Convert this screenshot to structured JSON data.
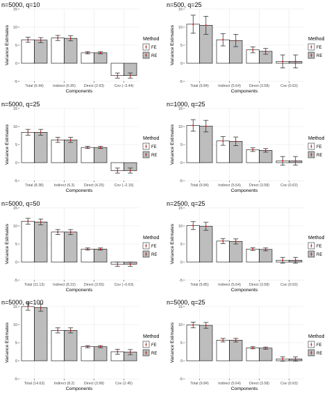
{
  "chart_data": [
    {
      "type": "bar",
      "title": "n=5000, q=10",
      "xlabel": "Components",
      "ylabel": "Variance Estimates",
      "ylim": [
        -5,
        15
      ],
      "yticks": [
        -5,
        0,
        5,
        10,
        15
      ],
      "grid": true,
      "legend_title": "Method",
      "legend_position": "right",
      "categories": [
        "Total (6.44)",
        "Indirect (6.95)",
        "Direct (2.93)",
        "Cov (−3.44)"
      ],
      "series": [
        {
          "name": "FE",
          "fill": "#ffffff",
          "values": [
            6.5,
            7.0,
            2.9,
            -3.4
          ],
          "err": [
            0.7,
            0.7,
            0.3,
            0.7
          ]
        },
        {
          "name": "RE",
          "fill": "#bdbdbd",
          "values": [
            6.4,
            6.9,
            2.9,
            -3.4
          ],
          "err": [
            0.7,
            0.7,
            0.3,
            0.7
          ]
        }
      ]
    },
    {
      "type": "bar",
      "title": "n=500, q=25",
      "xlabel": "Components",
      "ylabel": "Variance Estimates",
      "ylim": [
        -5,
        15
      ],
      "yticks": [
        -5,
        0,
        5,
        10,
        15
      ],
      "grid": true,
      "legend_title": "Method",
      "legend_position": "right",
      "categories": [
        "Total (9.84)",
        "Indirect (5.64)",
        "Direct (3.58)",
        "Cov (0.63)"
      ],
      "series": [
        {
          "name": "FE",
          "fill": "#ffffff",
          "values": [
            10.8,
            6.5,
            3.7,
            0.5
          ],
          "err": [
            2.5,
            1.7,
            0.8,
            1.8
          ]
        },
        {
          "name": "RE",
          "fill": "#bdbdbd",
          "values": [
            10.5,
            6.3,
            3.3,
            0.5
          ],
          "err": [
            2.5,
            1.7,
            0.8,
            1.8
          ]
        }
      ]
    },
    {
      "type": "bar",
      "title": "n=5000, q=25",
      "xlabel": "Components",
      "ylabel": "Variance Estimates",
      "ylim": [
        -5,
        15
      ],
      "yticks": [
        -5,
        0,
        5,
        10,
        15
      ],
      "grid": true,
      "legend_title": "Method",
      "legend_position": "right",
      "categories": [
        "Total (8.38)",
        "Indirect (6.3)",
        "Direct (4.25)",
        "Cov (−2.16)"
      ],
      "series": [
        {
          "name": "FE",
          "fill": "#ffffff",
          "values": [
            8.4,
            6.3,
            4.2,
            -2.2
          ],
          "err": [
            0.8,
            0.7,
            0.3,
            0.7
          ]
        },
        {
          "name": "RE",
          "fill": "#bdbdbd",
          "values": [
            8.4,
            6.3,
            4.2,
            -2.2
          ],
          "err": [
            0.8,
            0.7,
            0.3,
            0.7
          ]
        }
      ]
    },
    {
      "type": "bar",
      "title": "n=1000, q=25",
      "xlabel": "Components",
      "ylabel": "Variance Estimates",
      "ylim": [
        -5,
        15
      ],
      "yticks": [
        -5,
        0,
        5,
        10,
        15
      ],
      "grid": true,
      "legend_title": "Method",
      "legend_position": "right",
      "categories": [
        "Total (9.84)",
        "Indirect (5.64)",
        "Direct (3.58)",
        "Cov (0.63)"
      ],
      "series": [
        {
          "name": "FE",
          "fill": "#ffffff",
          "values": [
            10.3,
            6.0,
            3.6,
            0.5
          ],
          "err": [
            1.6,
            1.2,
            0.5,
            1.2
          ]
        },
        {
          "name": "RE",
          "fill": "#bdbdbd",
          "values": [
            10.1,
            5.9,
            3.4,
            0.5
          ],
          "err": [
            1.6,
            1.2,
            0.5,
            1.2
          ]
        }
      ]
    },
    {
      "type": "bar",
      "title": "n=5000, q=50",
      "xlabel": "Components",
      "ylabel": "Variance Estimates",
      "ylim": [
        -5,
        15
      ],
      "yticks": [
        -5,
        0,
        5,
        10,
        15
      ],
      "grid": true,
      "legend_title": "Method",
      "legend_position": "right",
      "categories": [
        "Total (11.13)",
        "Indirect (8.22)",
        "Direct (3.55)",
        "Cov (−0.63)"
      ],
      "series": [
        {
          "name": "FE",
          "fill": "#ffffff",
          "values": [
            11.3,
            8.3,
            3.6,
            -0.6
          ],
          "err": [
            0.8,
            0.7,
            0.3,
            0.6
          ]
        },
        {
          "name": "RE",
          "fill": "#bdbdbd",
          "values": [
            11.1,
            8.3,
            3.6,
            -0.6
          ],
          "err": [
            0.8,
            0.7,
            0.3,
            0.6
          ]
        }
      ]
    },
    {
      "type": "bar",
      "title": "n=2500, q=25",
      "xlabel": "Components",
      "ylabel": "Variance Estimates",
      "ylim": [
        -5,
        15
      ],
      "yticks": [
        -5,
        0,
        5,
        10,
        15
      ],
      "grid": true,
      "legend_title": "Method",
      "legend_position": "right",
      "categories": [
        "Total (9.85)",
        "Indirect (5.64)",
        "Direct (3.58)",
        "Cov (0.63)"
      ],
      "series": [
        {
          "name": "FE",
          "fill": "#ffffff",
          "values": [
            10.1,
            5.8,
            3.6,
            0.5
          ],
          "err": [
            1.1,
            0.7,
            0.4,
            0.8
          ]
        },
        {
          "name": "RE",
          "fill": "#bdbdbd",
          "values": [
            9.9,
            5.7,
            3.5,
            0.5
          ],
          "err": [
            1.1,
            0.7,
            0.4,
            0.8
          ]
        }
      ]
    },
    {
      "type": "bar",
      "title": "n=5000, q=100",
      "xlabel": "Components",
      "ylabel": "Variance Estimates",
      "ylim": [
        -5,
        15
      ],
      "yticks": [
        -5,
        0,
        5,
        10,
        15
      ],
      "grid": true,
      "legend_title": "Method",
      "legend_position": "right",
      "categories": [
        "Total (14.63)",
        "Indirect (8.2)",
        "Direct (3.98)",
        "Cov (2.45)"
      ],
      "series": [
        {
          "name": "FE",
          "fill": "#ffffff",
          "values": [
            15.0,
            8.4,
            3.9,
            2.5
          ],
          "err": [
            1.0,
            0.7,
            0.3,
            0.7
          ]
        },
        {
          "name": "RE",
          "fill": "#bdbdbd",
          "values": [
            14.7,
            8.4,
            3.9,
            2.4
          ],
          "err": [
            1.0,
            0.7,
            0.3,
            0.7
          ]
        }
      ]
    },
    {
      "type": "bar",
      "title": "n=5000, q=25",
      "xlabel": "Components",
      "ylabel": "Variance Estimates",
      "ylim": [
        -5,
        15
      ],
      "yticks": [
        -5,
        0,
        5,
        10,
        15
      ],
      "grid": true,
      "legend_title": "Method",
      "legend_position": "right",
      "categories": [
        "Total (9.84)",
        "Indirect (5.64)",
        "Direct (3.58)",
        "Cov (0.63)"
      ],
      "series": [
        {
          "name": "FE",
          "fill": "#ffffff",
          "values": [
            9.9,
            5.7,
            3.6,
            0.5
          ],
          "err": [
            0.8,
            0.5,
            0.3,
            0.6
          ]
        },
        {
          "name": "RE",
          "fill": "#bdbdbd",
          "values": [
            9.8,
            5.7,
            3.5,
            0.5
          ],
          "err": [
            0.8,
            0.5,
            0.3,
            0.6
          ]
        }
      ]
    }
  ],
  "style": {
    "grid_color": "#e6e6e6",
    "bar_stroke": "#000000",
    "errorbar_color": "#333333",
    "point_color": "#e41a1c",
    "axis_color": "#333333"
  }
}
